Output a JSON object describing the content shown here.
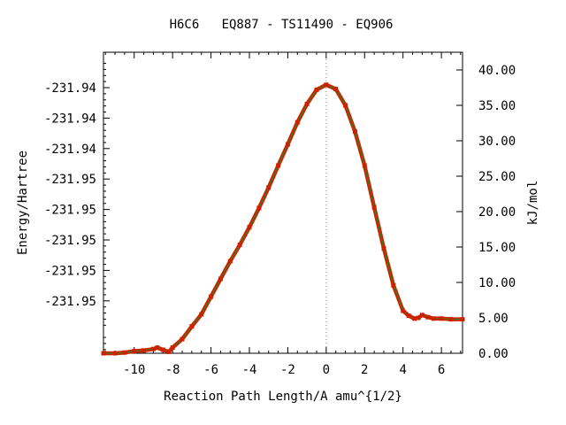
{
  "chart_data": {
    "type": "line",
    "title": "H6C6   EQ887 - TS11490 - EQ906",
    "xlabel": "Reaction Path Length/A amu^{1/2}",
    "ylabel": "Energy/Hartree",
    "y2label": "kJ/mol",
    "xlim": [
      -11.6,
      7.1
    ],
    "y2lim": [
      0,
      42.5
    ],
    "x_ticks": [
      -10,
      -8,
      -6,
      -4,
      -2,
      0,
      2,
      4,
      6
    ],
    "x_tick_labels": [
      "-10",
      "-8",
      "-6",
      "-4",
      "-2",
      "0",
      "2",
      "4",
      "6"
    ],
    "y_tick_labels": [
      "-231.94",
      "-231.94",
      "-231.94",
      "-231.95",
      "-231.95",
      "-231.95",
      "-231.95",
      "-231.95"
    ],
    "y2_ticks": [
      0,
      5,
      10,
      15,
      20,
      25,
      30,
      35,
      40
    ],
    "y2_tick_labels": [
      "0.00",
      "5.00",
      "10.00",
      "15.00",
      "20.00",
      "25.00",
      "30.00",
      "35.00",
      "40.00"
    ],
    "ts_marker_x": 0,
    "series": [
      {
        "color": "#cc2200",
        "line_color": "#228b22",
        "x": [
          -11.6,
          -11.0,
          -10.5,
          -10.0,
          -9.5,
          -9.0,
          -8.8,
          -8.5,
          -8.2,
          -8.0,
          -7.5,
          -7.0,
          -6.5,
          -6.0,
          -5.5,
          -5.0,
          -4.5,
          -4.0,
          -3.5,
          -3.0,
          -2.5,
          -2.0,
          -1.5,
          -1.0,
          -0.5,
          0.0,
          0.5,
          1.0,
          1.5,
          2.0,
          2.5,
          3.0,
          3.5,
          4.0,
          4.3,
          4.6,
          4.8,
          5.0,
          5.3,
          5.6,
          6.0,
          6.5,
          7.1
        ],
        "y": [
          0.0,
          0.0,
          0.1,
          0.3,
          0.4,
          0.6,
          0.8,
          0.5,
          0.2,
          0.8,
          2.0,
          3.8,
          5.5,
          8.0,
          10.5,
          13.0,
          15.3,
          17.8,
          20.5,
          23.4,
          26.5,
          29.5,
          32.6,
          35.2,
          37.2,
          37.9,
          37.3,
          35.0,
          31.3,
          26.5,
          20.6,
          14.8,
          9.6,
          6.0,
          5.3,
          4.9,
          5.0,
          5.4,
          5.1,
          4.9,
          4.9,
          4.8,
          4.8
        ]
      }
    ]
  }
}
